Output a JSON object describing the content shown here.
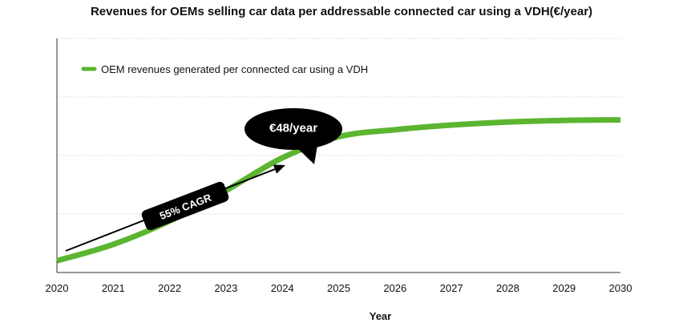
{
  "chart_data": {
    "type": "line",
    "title": "Revenues for OEMs selling car data per addressable connected car using a VDH(€/year)",
    "xlabel": "Year",
    "ylabel": "",
    "x": [
      2020,
      2021,
      2022,
      2023,
      2024,
      2025,
      2026,
      2027,
      2028,
      2029,
      2030
    ],
    "xlim": [
      2020,
      2030
    ],
    "ylim": [
      0,
      100
    ],
    "grid": "horizontal-dotted",
    "legend_position": "top-left",
    "series": [
      {
        "name": "OEM revenues generated per connected car using a VDH",
        "color": "#5cb531",
        "values": [
          5,
          12,
          22,
          35,
          49,
          58,
          61,
          63,
          64.3,
          65,
          65.2
        ]
      }
    ],
    "annotations": {
      "bubble": "€48/year",
      "cagr": "55% CAGR"
    }
  }
}
